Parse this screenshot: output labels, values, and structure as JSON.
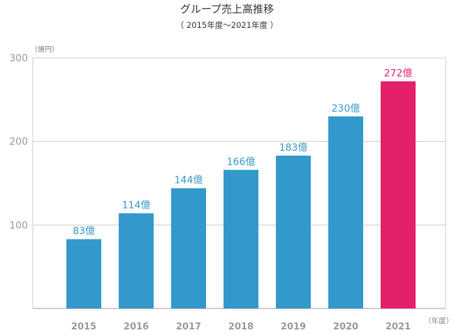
{
  "header": {
    "title": "グループ売上高推移",
    "subtitle": "（ 2015年度～2021年度 ）"
  },
  "axes": {
    "y_unit": "（億円）",
    "x_unit": "（年度）"
  },
  "colors": {
    "bar": "#3399cc",
    "highlight": "#e4206a",
    "grid": "#cccccc",
    "tick_label": "#999999"
  },
  "chart_data": {
    "type": "bar",
    "title": "グループ売上高推移",
    "subtitle": "（ 2015年度～2021年度 ）",
    "xlabel": "（年度）",
    "ylabel": "（億円）",
    "categories": [
      "2015",
      "2016",
      "2017",
      "2018",
      "2019",
      "2020",
      "2021"
    ],
    "values": [
      83,
      114,
      144,
      166,
      183,
      230,
      272
    ],
    "data_labels": [
      "83億",
      "114億",
      "144億",
      "166億",
      "183億",
      "230億",
      "272億"
    ],
    "highlight_category": "2021",
    "ylim": [
      0,
      300
    ],
    "yticks": [
      100,
      200,
      300
    ],
    "grid": true,
    "legend": "none"
  }
}
